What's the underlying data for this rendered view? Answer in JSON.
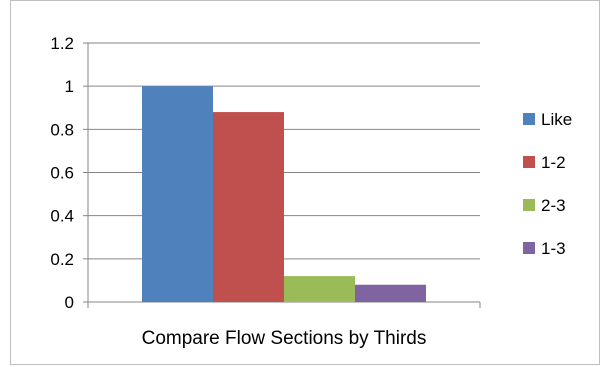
{
  "chart_data": {
    "type": "bar",
    "categories": [
      "Compare Flow Sections by Thirds"
    ],
    "series": [
      {
        "name": "Like",
        "values": [
          1.0
        ],
        "color": "#4f81bd"
      },
      {
        "name": "1-2",
        "values": [
          0.88
        ],
        "color": "#c0504d"
      },
      {
        "name": "2-3",
        "values": [
          0.12
        ],
        "color": "#9bbb59"
      },
      {
        "name": "1-3",
        "values": [
          0.08
        ],
        "color": "#8064a2"
      }
    ],
    "title": "",
    "xlabel": "",
    "ylabel": "",
    "ylim": [
      0,
      1.2
    ],
    "yticks": [
      "0",
      "0.2",
      "0.4",
      "0.6",
      "0.8",
      "1",
      "1.2"
    ],
    "grid": true,
    "legend": "right"
  }
}
